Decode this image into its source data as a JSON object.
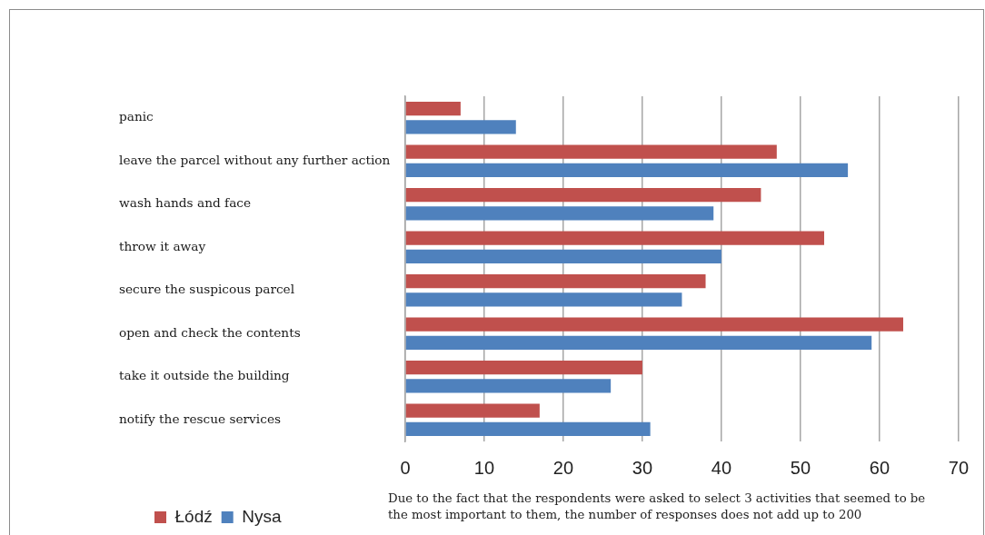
{
  "chart_data": {
    "type": "bar",
    "orientation": "horizontal",
    "categories": [
      "panic",
      "leave the parcel without any further action",
      "wash hands and face",
      "throw it away",
      "secure the suspicous parcel",
      "open and check the contents",
      "take it outside the building",
      "notify the rescue services"
    ],
    "series": [
      {
        "name": "Łódź",
        "color": "#c0504d",
        "values": [
          7,
          47,
          45,
          53,
          38,
          63,
          30,
          17
        ]
      },
      {
        "name": "Nysa",
        "color": "#4f81bd",
        "values": [
          14,
          56,
          39,
          40,
          35,
          59,
          26,
          31
        ]
      }
    ],
    "xlim": [
      0,
      70
    ],
    "xticks": [
      0,
      10,
      20,
      30,
      40,
      50,
      60,
      70
    ],
    "grid": "x",
    "legend": "bottom left",
    "annotations": [
      "Due to the fact that the respondents were asked to select 3 activities that seemed to be the most important to them, the number of responses does not add up to 200"
    ]
  }
}
